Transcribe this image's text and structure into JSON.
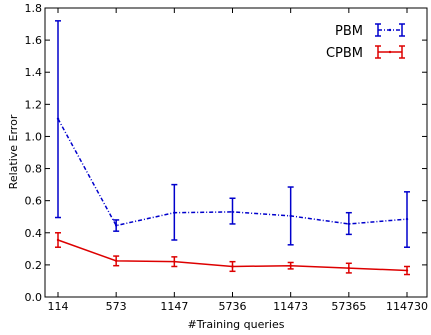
{
  "chart_data": {
    "type": "line",
    "categories": [
      "114",
      "573",
      "1147",
      "5736",
      "11473",
      "57365",
      "114730"
    ],
    "xlabel": "#Training queries",
    "ylabel": "Relative Error",
    "ylim": [
      0.0,
      1.8
    ],
    "yticks": [
      "0.0",
      "0.2",
      "0.4",
      "0.6",
      "0.8",
      "1.0",
      "1.2",
      "1.4",
      "1.6",
      "1.8"
    ],
    "grid": false,
    "legend_position": "top-right",
    "series": [
      {
        "name": "PBM",
        "color": "#0000cc",
        "line_style": "dash-dot",
        "values": [
          1.11,
          0.445,
          0.525,
          0.53,
          0.505,
          0.455,
          0.485
        ],
        "error_low": [
          0.495,
          0.41,
          0.355,
          0.455,
          0.325,
          0.39,
          0.31
        ],
        "error_high": [
          1.72,
          0.48,
          0.7,
          0.615,
          0.685,
          0.525,
          0.655
        ]
      },
      {
        "name": "CPBM",
        "color": "#dd0000",
        "line_style": "solid",
        "values": [
          0.355,
          0.225,
          0.22,
          0.19,
          0.195,
          0.18,
          0.165
        ],
        "error_low": [
          0.31,
          0.195,
          0.19,
          0.16,
          0.175,
          0.15,
          0.14
        ],
        "error_high": [
          0.4,
          0.255,
          0.25,
          0.22,
          0.215,
          0.21,
          0.19
        ]
      }
    ]
  }
}
